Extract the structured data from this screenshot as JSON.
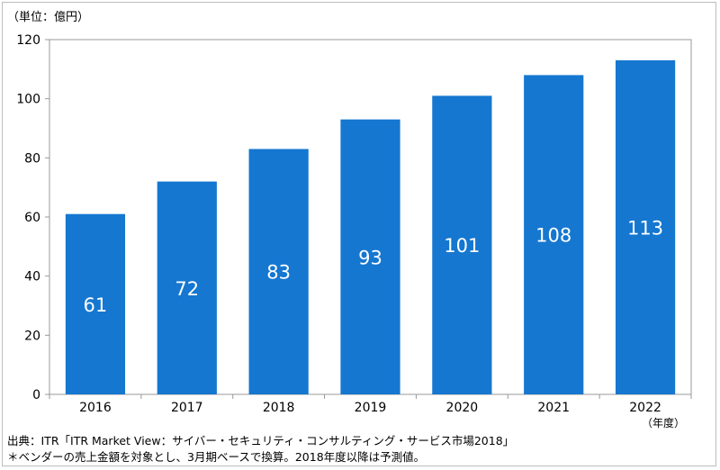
{
  "chart_data": {
    "type": "bar",
    "categories": [
      "2016",
      "2017",
      "2018",
      "2019",
      "2020",
      "2021",
      "2022"
    ],
    "values": [
      61,
      72,
      83,
      93,
      101,
      108,
      113
    ],
    "data_labels": [
      "61",
      "72",
      "83",
      "93",
      "101",
      "108",
      "113"
    ],
    "ylim": [
      0,
      120
    ],
    "yticks": [
      0,
      20,
      40,
      60,
      80,
      100,
      120
    ],
    "y_unit_label": "（単位：億円）",
    "x_unit_label": "（年度）",
    "grid": false,
    "bar_color": "#1577d0",
    "label_color": "#ffffff"
  },
  "notes": {
    "source": "出典：ITR「ITR Market View：サイバー・セキュリティ・コンサルティング・サービス市場2018」",
    "footnote": "＊ベンダーの売上金額を対象とし、3月期ベースで換算。2018年度以降は予測値。"
  }
}
